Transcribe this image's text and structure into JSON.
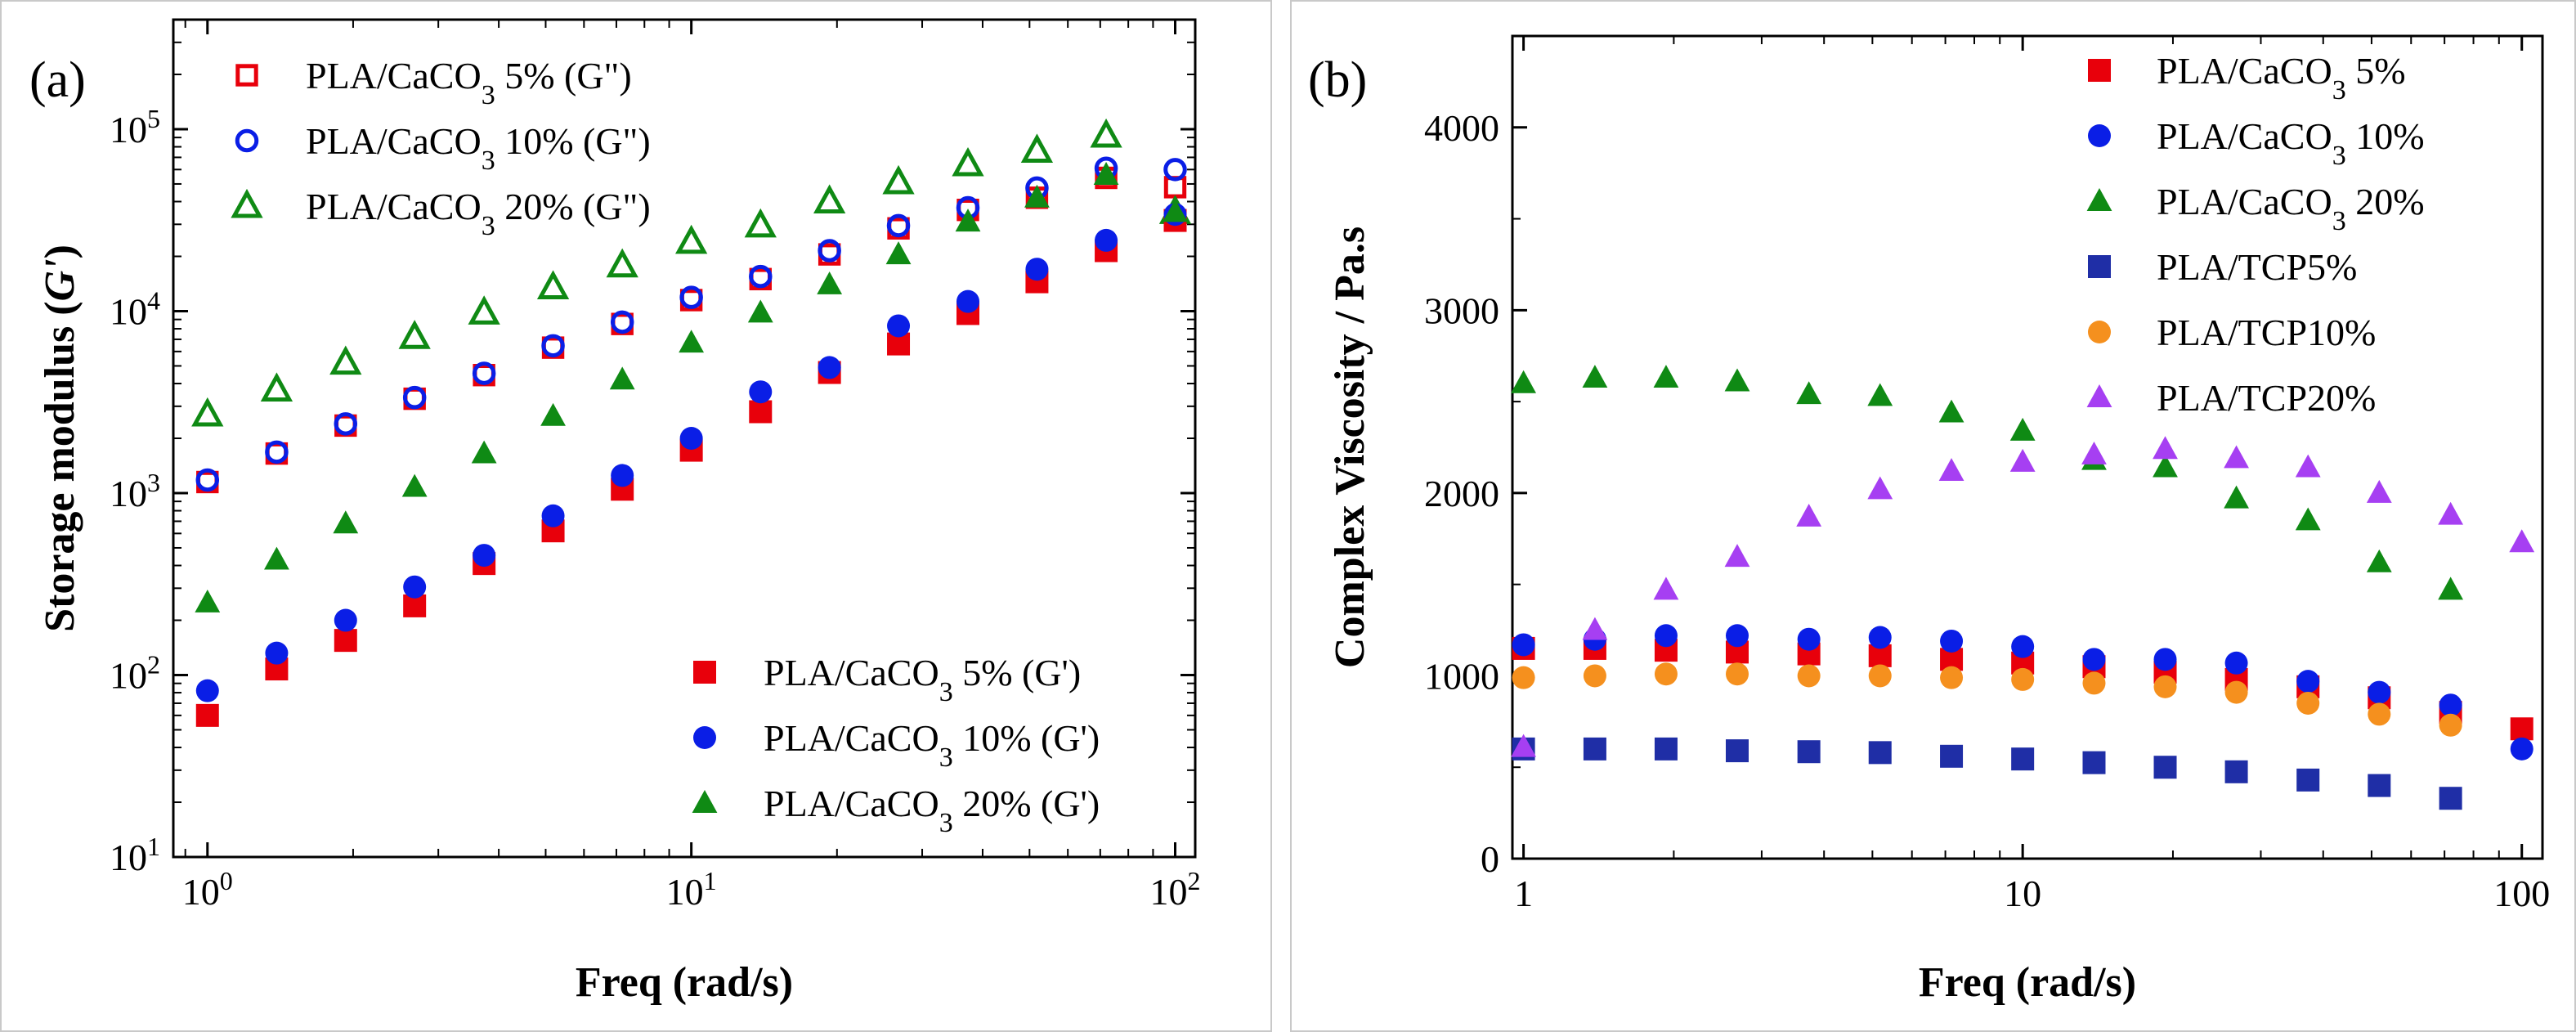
{
  "chart_data": [
    {
      "type": "scatter",
      "panel_label": "(a)",
      "xlabel": "Freq (rad/s)",
      "ylabel": "Storage modulus (G')",
      "xscale": "log",
      "yscale": "log",
      "xlim": [
        0.85,
        110
      ],
      "ylim": [
        10,
        400000
      ],
      "xticks": [
        {
          "value": 1,
          "base": "10",
          "exp": "0"
        },
        {
          "value": 10,
          "base": "10",
          "exp": "1"
        },
        {
          "value": 100,
          "base": "10",
          "exp": "2"
        }
      ],
      "yticks": [
        {
          "value": 10,
          "base": "10",
          "exp": "1"
        },
        {
          "value": 100,
          "base": "10",
          "exp": "2"
        },
        {
          "value": 1000,
          "base": "10",
          "exp": "3"
        },
        {
          "value": 10000,
          "base": "10",
          "exp": "4"
        },
        {
          "value": 100000,
          "base": "10",
          "exp": "5"
        }
      ],
      "x": [
        1,
        1.39,
        1.93,
        2.68,
        3.73,
        5.18,
        7.2,
        10,
        13.9,
        19.3,
        26.8,
        37.3,
        51.8,
        72,
        100
      ],
      "series": [
        {
          "name": "PLA/CaCO3 5%   (G\")",
          "marker": "square-open",
          "color": "#e8000b",
          "values": [
            1150,
            1650,
            2350,
            3300,
            4450,
            6300,
            8500,
            11500,
            15000,
            20500,
            28500,
            36000,
            42000,
            54000,
            48000
          ]
        },
        {
          "name": "PLA/CaCO3 10% (G\")",
          "marker": "circle-open",
          "color": "#0a1ee6",
          "values": [
            1180,
            1680,
            2400,
            3350,
            4550,
            6450,
            8700,
            11900,
            15500,
            21500,
            29500,
            37000,
            47500,
            61000,
            60000
          ]
        },
        {
          "name": "PLA/CaCO3 20% (G\")",
          "marker": "triangle-open",
          "color": "#0f8a14",
          "values": [
            2700,
            3700,
            5200,
            7200,
            9800,
            13500,
            17800,
            24000,
            29500,
            40000,
            51000,
            64000,
            76000,
            92000,
            35000
          ]
        },
        {
          "name": "PLA/CaCO3 5%   (G')",
          "marker": "square",
          "color": "#e8000b",
          "values": [
            60,
            108,
            155,
            240,
            410,
            620,
            1050,
            1720,
            2800,
            4600,
            6600,
            9700,
            14500,
            21500,
            31500
          ]
        },
        {
          "name": "PLA/CaCO3 10% (G')",
          "marker": "circle",
          "color": "#0a1ee6",
          "values": [
            82,
            132,
            200,
            305,
            455,
            750,
            1250,
            2000,
            3600,
            4900,
            8300,
            11300,
            17000,
            24500,
            34000
          ]
        },
        {
          "name": "PLA/CaCO3 20% (G')",
          "marker": "triangle",
          "color": "#0f8a14",
          "values": [
            250,
            430,
            680,
            1080,
            1650,
            2650,
            4200,
            6700,
            9800,
            14000,
            20500,
            31000,
            42000,
            56000,
            35000
          ]
        }
      ]
    },
    {
      "type": "scatter",
      "panel_label": "(b)",
      "xlabel": "Freq (rad/s)",
      "ylabel": "Complex Viscosity / Pa.s",
      "xscale": "log",
      "yscale": "linear",
      "xlim": [
        0.95,
        110
      ],
      "ylim": [
        0,
        4500
      ],
      "xticks": [
        {
          "value": 1,
          "label": "1"
        },
        {
          "value": 10,
          "label": "10"
        },
        {
          "value": 100,
          "label": "100"
        }
      ],
      "yticks": [
        0,
        1000,
        2000,
        3000,
        4000
      ],
      "x": [
        1,
        1.39,
        1.93,
        2.68,
        3.73,
        5.18,
        7.2,
        10,
        13.9,
        19.3,
        26.8,
        37.3,
        51.8,
        72,
        100
      ],
      "series": [
        {
          "name": "PLA/CaCO3 5%",
          "marker": "square",
          "color": "#e8000b",
          "values": [
            1150,
            1150,
            1140,
            1130,
            1120,
            1110,
            1090,
            1070,
            1050,
            1020,
            980,
            940,
            880,
            800,
            710
          ]
        },
        {
          "name": "PLA/CaCO3 10%",
          "marker": "circle",
          "color": "#0a1ee6",
          "values": [
            1170,
            1200,
            1220,
            1220,
            1200,
            1210,
            1190,
            1160,
            1090,
            1090,
            1070,
            970,
            910,
            840,
            600
          ]
        },
        {
          "name": "PLA/CaCO3 20%",
          "marker": "triangle",
          "color": "#0f8a14",
          "values": [
            2600,
            2630,
            2630,
            2610,
            2540,
            2530,
            2440,
            2340,
            2180,
            2140,
            1970,
            1850,
            1620,
            1470,
            null
          ]
        },
        {
          "name": "PLA/TCP5%",
          "marker": "square",
          "color": "#1f2ea6",
          "values": [
            600,
            600,
            600,
            590,
            585,
            580,
            560,
            545,
            525,
            500,
            475,
            430,
            400,
            330,
            null
          ]
        },
        {
          "name": "PLA/TCP10%",
          "marker": "circle",
          "color": "#f5901e",
          "values": [
            990,
            1000,
            1010,
            1010,
            1000,
            1000,
            990,
            980,
            960,
            940,
            910,
            850,
            790,
            730,
            null
          ]
        },
        {
          "name": "PLA/TCP20%",
          "marker": "triangle",
          "color": "#a63ff2",
          "values": [
            610,
            1250,
            1470,
            1650,
            1870,
            2020,
            2120,
            2170,
            2210,
            2240,
            2190,
            2140,
            2000,
            1880,
            1730
          ]
        }
      ]
    }
  ]
}
